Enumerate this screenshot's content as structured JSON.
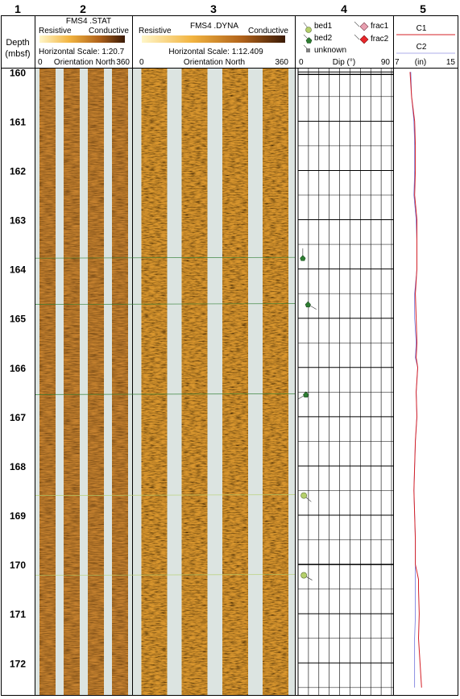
{
  "columns": [
    {
      "number": "1",
      "title": "Depth",
      "unit": "(mbsf)"
    },
    {
      "number": "2",
      "title": "FMS4 .STAT",
      "left_label": "Resistive",
      "right_label": "Conductive",
      "scale_text": "Horizontal Scale: 1:20.7",
      "orient_min": "0",
      "orient_label": "Orientation North",
      "orient_max": "360"
    },
    {
      "number": "3",
      "title": "FMS4 .DYNA",
      "left_label": "Resistive",
      "right_label": "Conductive",
      "scale_text": "Horizontal Scale:  1:12.409",
      "orient_min": "0",
      "orient_label": "Orientation North",
      "orient_max": "360"
    },
    {
      "number": "4",
      "axis_min": "0",
      "axis_label": "Dip (°)",
      "axis_max": "90"
    },
    {
      "number": "5",
      "axis_min": "7",
      "axis_label": "(in)",
      "axis_max": "15"
    }
  ],
  "legend": {
    "bed1": {
      "label": "bed1",
      "color": "#b5cf6b"
    },
    "bed2": {
      "label": "bed2",
      "color": "#2e7d32"
    },
    "unknown": {
      "label": "unknown",
      "color": "#808080"
    },
    "frac1": {
      "label": "frac1",
      "color": "#e89fb0"
    },
    "frac2": {
      "label": "frac2",
      "color": "#e8262b"
    }
  },
  "chart_data": {
    "type": "line",
    "depth_range": [
      159.93,
      172.65
    ],
    "depth_ticks": [
      "160",
      "161",
      "162",
      "163",
      "164",
      "165",
      "166",
      "167",
      "168",
      "169",
      "170",
      "171",
      "172"
    ],
    "dips": [
      {
        "type": "bed2",
        "depth": 163.78,
        "dip": 3,
        "azimuth": 0
      },
      {
        "type": "bed2",
        "depth": 164.72,
        "dip": 8,
        "azimuth": 120
      },
      {
        "type": "bed2",
        "depth": 166.55,
        "dip": 6,
        "azimuth": 240
      },
      {
        "type": "bed1",
        "depth": 168.6,
        "dip": 4,
        "azimuth": 130
      },
      {
        "type": "bed1",
        "depth": 170.22,
        "dip": 4,
        "azimuth": 120
      }
    ],
    "caliper": {
      "xlim": [
        7,
        15
      ],
      "series": [
        {
          "name": "C1",
          "color": "#d42027",
          "depth": [
            160,
            160.5,
            161,
            161.5,
            162,
            162.5,
            163,
            163.5,
            164,
            164.5,
            165,
            165.5,
            165.8,
            166,
            166.5,
            167,
            167.5,
            168,
            168.5,
            169,
            169.5,
            170,
            170.3,
            170.5,
            171,
            171.5,
            172,
            172.5
          ],
          "values": [
            9.0,
            9.2,
            9.6,
            9.7,
            9.7,
            9.6,
            9.9,
            9.9,
            9.9,
            9.7,
            9.8,
            9.9,
            9.8,
            10.0,
            9.8,
            9.9,
            9.7,
            9.6,
            9.5,
            9.6,
            9.7,
            9.7,
            10.1,
            10.1,
            10.2,
            10.1,
            10.3,
            10.5
          ]
        },
        {
          "name": "C2",
          "color": "#5a5fd6",
          "depth": [
            160,
            160.5,
            161,
            161.5,
            162,
            162.5,
            163,
            163.5,
            164,
            164.5,
            165,
            165.5,
            165.8,
            166,
            166.5,
            167,
            167.5,
            168,
            168.5,
            169,
            169.5,
            170,
            170.5,
            171,
            171.5,
            172,
            172.5
          ],
          "values": [
            9.1,
            9.2,
            9.5,
            9.6,
            9.6,
            9.5,
            9.8,
            9.9,
            9.9,
            9.6,
            9.6,
            9.8,
            9.7,
            10.0,
            9.8,
            9.9,
            9.7,
            9.6,
            9.5,
            9.6,
            9.7,
            9.7,
            9.7,
            9.7,
            9.6,
            9.6,
            9.6
          ]
        }
      ]
    }
  }
}
